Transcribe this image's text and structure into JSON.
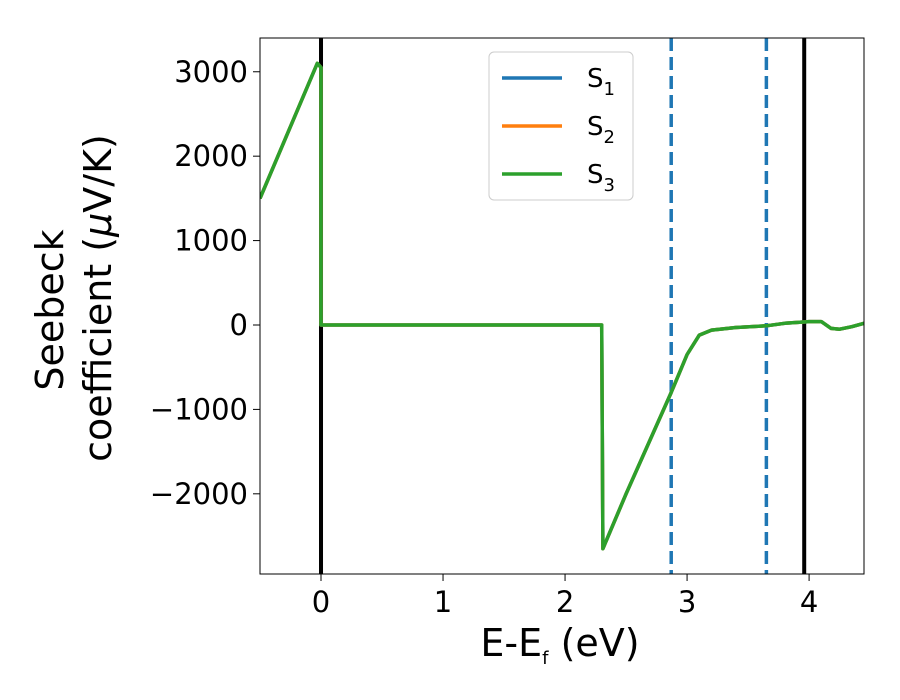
{
  "chart_data": {
    "type": "line",
    "xlabel": {
      "base": "E-E",
      "sub": "f",
      "suffix": " (eV)"
    },
    "ylabel": {
      "line1": "Seebeck",
      "line2": "coefficient  (",
      "mu": "μ",
      "line2_end": "V/K)"
    },
    "xlim": [
      -0.5,
      4.45
    ],
    "ylim": [
      -2950,
      3400
    ],
    "x_ticks": [
      0,
      1,
      2,
      3,
      4
    ],
    "y_ticks": [
      -2000,
      -1000,
      0,
      1000,
      2000,
      3000
    ],
    "y_tick_labels": [
      "−2000",
      "−1000",
      "0",
      "1000",
      "2000",
      "3000"
    ],
    "legend_position": "top-center",
    "grid": false,
    "vertical_lines": [
      {
        "x": 0.0,
        "style": "solid",
        "color": "#000000"
      },
      {
        "x": 3.96,
        "style": "solid",
        "color": "#000000"
      },
      {
        "x": 2.87,
        "style": "dashed",
        "color": "#1f77b4"
      },
      {
        "x": 3.65,
        "style": "dashed",
        "color": "#1f77b4"
      }
    ],
    "series": [
      {
        "name": "S1",
        "base": "S",
        "sub": "1",
        "color": "#1f77b4",
        "x": [
          -0.5,
          -0.03,
          0.0,
          0.0,
          1.0,
          2.0,
          2.3,
          2.31,
          2.5,
          2.87,
          3.0,
          3.1,
          3.2,
          3.4,
          3.65,
          3.8,
          4.0,
          4.1,
          4.18,
          4.25,
          4.35,
          4.45
        ],
        "y": [
          1500,
          3100,
          3050,
          0,
          0,
          0,
          0,
          -2650,
          -2000,
          -800,
          -350,
          -120,
          -60,
          -30,
          -10,
          20,
          40,
          40,
          -40,
          -50,
          -20,
          20
        ]
      },
      {
        "name": "S2",
        "base": "S",
        "sub": "2",
        "color": "#ff7f0e",
        "x": [
          -0.5,
          -0.03,
          0.0,
          0.0,
          1.0,
          2.0,
          2.3,
          2.31,
          2.5,
          2.87,
          3.0,
          3.1,
          3.2,
          3.4,
          3.65,
          3.8,
          4.0,
          4.1,
          4.18,
          4.25,
          4.35,
          4.45
        ],
        "y": [
          1500,
          3100,
          3050,
          0,
          0,
          0,
          0,
          -2650,
          -2000,
          -800,
          -350,
          -120,
          -60,
          -30,
          -10,
          20,
          40,
          40,
          -40,
          -50,
          -20,
          20
        ]
      },
      {
        "name": "S3",
        "base": "S",
        "sub": "3",
        "color": "#2ca02c",
        "x": [
          -0.5,
          -0.03,
          0.0,
          0.0,
          1.0,
          2.0,
          2.3,
          2.31,
          2.5,
          2.87,
          3.0,
          3.1,
          3.2,
          3.4,
          3.65,
          3.8,
          4.0,
          4.1,
          4.18,
          4.25,
          4.35,
          4.45
        ],
        "y": [
          1500,
          3100,
          3050,
          0,
          0,
          0,
          0,
          -2650,
          -2000,
          -800,
          -350,
          -120,
          -60,
          -30,
          -10,
          20,
          40,
          40,
          -40,
          -50,
          -20,
          20
        ]
      }
    ]
  }
}
